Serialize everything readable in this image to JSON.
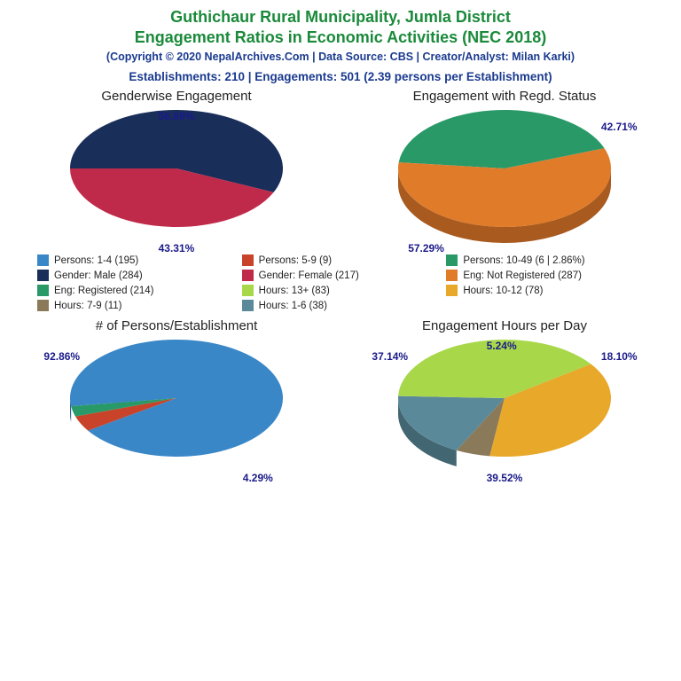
{
  "header": {
    "title_line1": "Guthichaur Rural Municipality, Jumla District",
    "title_line2": "Engagement Ratios in Economic Activities (NEC 2018)",
    "copyright": "(Copyright © 2020 NepalArchives.Com | Data Source: CBS | Creator/Analyst: Milan Karki)",
    "summary": "Establishments: 210 | Engagements: 501 (2.39 persons per Establishment)",
    "title_color": "#1a8a3a",
    "meta_color": "#1a3a8f",
    "title_fontsize": 18,
    "copyright_fontsize": 12.5,
    "summary_fontsize": 13.5
  },
  "legend": {
    "items": [
      {
        "label": "Persons: 1-4 (195)",
        "color": "#3a87c8"
      },
      {
        "label": "Persons: 5-9 (9)",
        "color": "#c8432a"
      },
      {
        "label": "Persons: 10-49 (6 | 2.86%)",
        "color": "#2a9968"
      },
      {
        "label": "Gender: Male (284)",
        "color": "#1a2e5a"
      },
      {
        "label": "Gender: Female (217)",
        "color": "#c02a4a"
      },
      {
        "label": "Eng: Not Registered (287)",
        "color": "#e07b2a"
      },
      {
        "label": "Eng: Registered (214)",
        "color": "#2a9968"
      },
      {
        "label": "Hours: 13+ (83)",
        "color": "#a8d84a"
      },
      {
        "label": "Hours: 10-12 (78)",
        "color": "#e8a82a"
      },
      {
        "label": "Hours: 7-9 (11)",
        "color": "#8a7a5a"
      },
      {
        "label": "Hours: 1-6 (38)",
        "color": "#5a8a9a"
      }
    ]
  },
  "charts": {
    "gender": {
      "title": "Genderwise Engagement",
      "type": "pie3d",
      "start_angle": 180,
      "tilt_ratio": 0.55,
      "slices": [
        {
          "pct": 56.69,
          "color": "#1a2e5a",
          "side_color": "#12203e",
          "label": "56.69%",
          "label_pos": "top-center"
        },
        {
          "pct": 43.31,
          "color": "#c02a4a",
          "side_color": "#8a1f36",
          "label": "43.31%",
          "label_pos": "bottom-center"
        }
      ]
    },
    "regd": {
      "title": "Engagement with Regd. Status",
      "type": "pie3d",
      "start_angle": 186,
      "tilt_ratio": 0.55,
      "slices": [
        {
          "pct": 42.71,
          "color": "#2a9968",
          "side_color": "#1f6e4b",
          "label": "42.71%",
          "label_pos": "top-right"
        },
        {
          "pct": 57.29,
          "color": "#e07b2a",
          "side_color": "#a85a1f",
          "label": "57.29%",
          "label_pos": "bottom-left"
        }
      ]
    },
    "persons": {
      "title": "# of Persons/Establishment",
      "type": "pie3d",
      "start_angle": 172,
      "tilt_ratio": 0.55,
      "slices": [
        {
          "pct": 92.86,
          "color": "#3a87c8",
          "side_color": "#2a6090",
          "label": "92.86%",
          "label_pos": "top-left"
        },
        {
          "pct": 4.29,
          "color": "#c8432a",
          "side_color": "#902f1e",
          "label": "4.29%",
          "label_pos": "bottom-right"
        },
        {
          "pct": 2.86,
          "color": "#2a9968",
          "side_color": "#1f6e4b",
          "label": "",
          "label_pos": ""
        }
      ]
    },
    "hours": {
      "title": "Engagement Hours per Day",
      "type": "pie3d",
      "start_angle": 98,
      "tilt_ratio": 0.55,
      "slices": [
        {
          "pct": 5.24,
          "color": "#8a7a5a",
          "side_color": "#665a42",
          "label": "5.24%",
          "label_pos": "top-center"
        },
        {
          "pct": 18.1,
          "color": "#5a8a9a",
          "side_color": "#426672",
          "label": "18.10%",
          "label_pos": "top-right"
        },
        {
          "pct": 39.52,
          "color": "#a8d84a",
          "side_color": "#7aa036",
          "label": "39.52%",
          "label_pos": "bottom-center"
        },
        {
          "pct": 37.14,
          "color": "#e8a82a",
          "side_color": "#b0801f",
          "label": "37.14%",
          "label_pos": "top-left"
        }
      ]
    }
  },
  "label_color": "#1a1a8a",
  "label_fontsize": 12,
  "background_color": "#ffffff"
}
